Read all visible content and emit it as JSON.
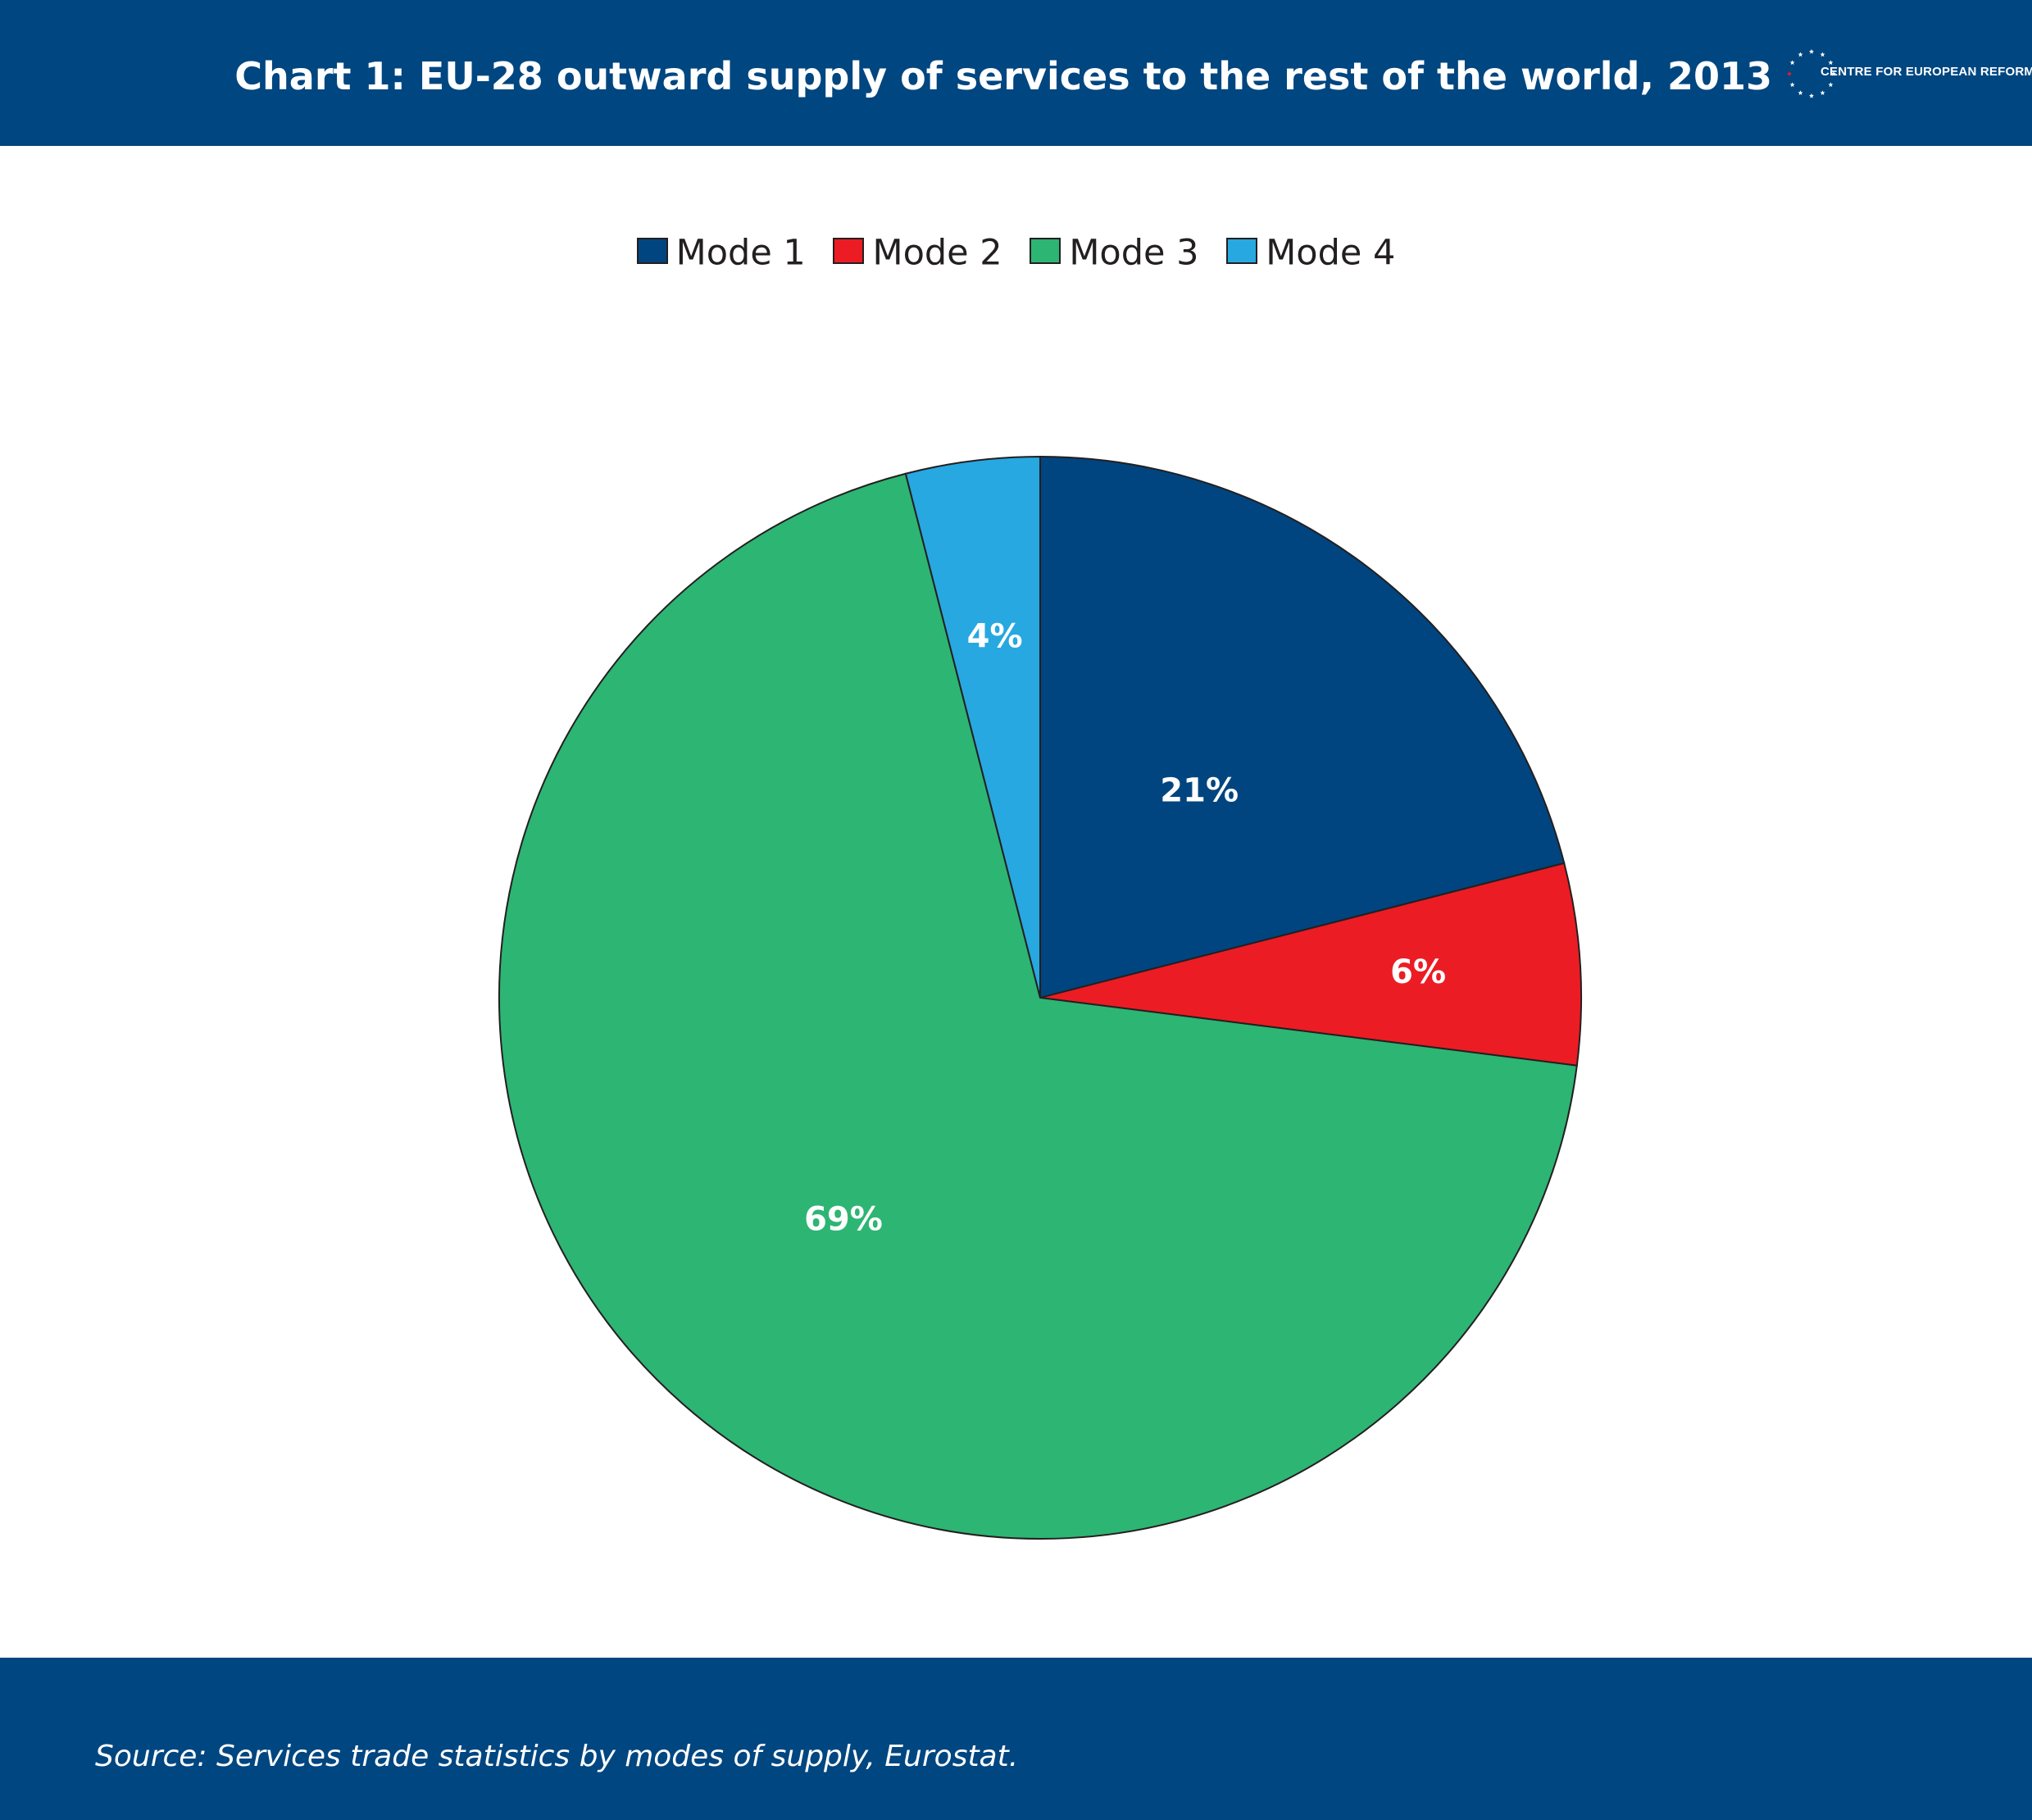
{
  "header": {
    "title": "Chart 1: EU-28 outward supply of services to the rest of the world, 2013",
    "logo_text": "CENTRE FOR EUROPEAN REFORM"
  },
  "footer": {
    "source": "Source:  Services trade statistics by modes of supply, Eurostat."
  },
  "colors": {
    "header_bg": "#004680",
    "mode1": "#00457f",
    "mode2": "#ec1c24",
    "mode3": "#2db573",
    "mode4": "#27a8e1"
  },
  "chart_data": {
    "type": "pie",
    "title": "Chart 1: EU-28 outward supply of services to the rest of the world, 2013",
    "legend_position": "top",
    "slices": [
      {
        "name": "Mode 1",
        "value": 21,
        "label": "21%",
        "color": "#00457f"
      },
      {
        "name": "Mode 2",
        "value": 6,
        "label": "6%",
        "color": "#ec1c24"
      },
      {
        "name": "Mode 3",
        "value": 69,
        "label": "69%",
        "color": "#2db573"
      },
      {
        "name": "Mode 4",
        "value": 4,
        "label": "4%",
        "color": "#27a8e1"
      }
    ]
  }
}
